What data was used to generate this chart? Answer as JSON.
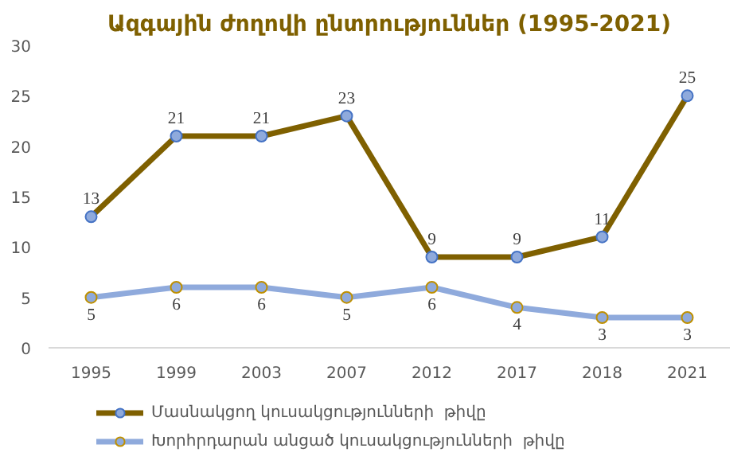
{
  "chart_data": {
    "type": "line",
    "title": "Ազգային ժողովի ընտրություններ (1995-2021)",
    "categories": [
      "1995",
      "1999",
      "2003",
      "2007",
      "2012",
      "2017",
      "2018",
      "2021"
    ],
    "series": [
      {
        "name": "Մասնակցող կուսակցությունների  թիվը",
        "color": "#7f6000",
        "values": [
          13,
          21,
          21,
          23,
          9,
          9,
          11,
          25
        ]
      },
      {
        "name": "Խորհրդարան անցած կուսակցությունների  թիվը",
        "color": "#8faadc",
        "values": [
          5,
          6,
          6,
          5,
          6,
          4,
          3,
          3
        ]
      }
    ],
    "ylim": [
      0,
      30
    ],
    "yticks": [
      0,
      5,
      10,
      15,
      20,
      25,
      30
    ],
    "grid": false,
    "legend": "bottom",
    "marker": "circle",
    "line_style": "solid",
    "data_labels": true
  }
}
